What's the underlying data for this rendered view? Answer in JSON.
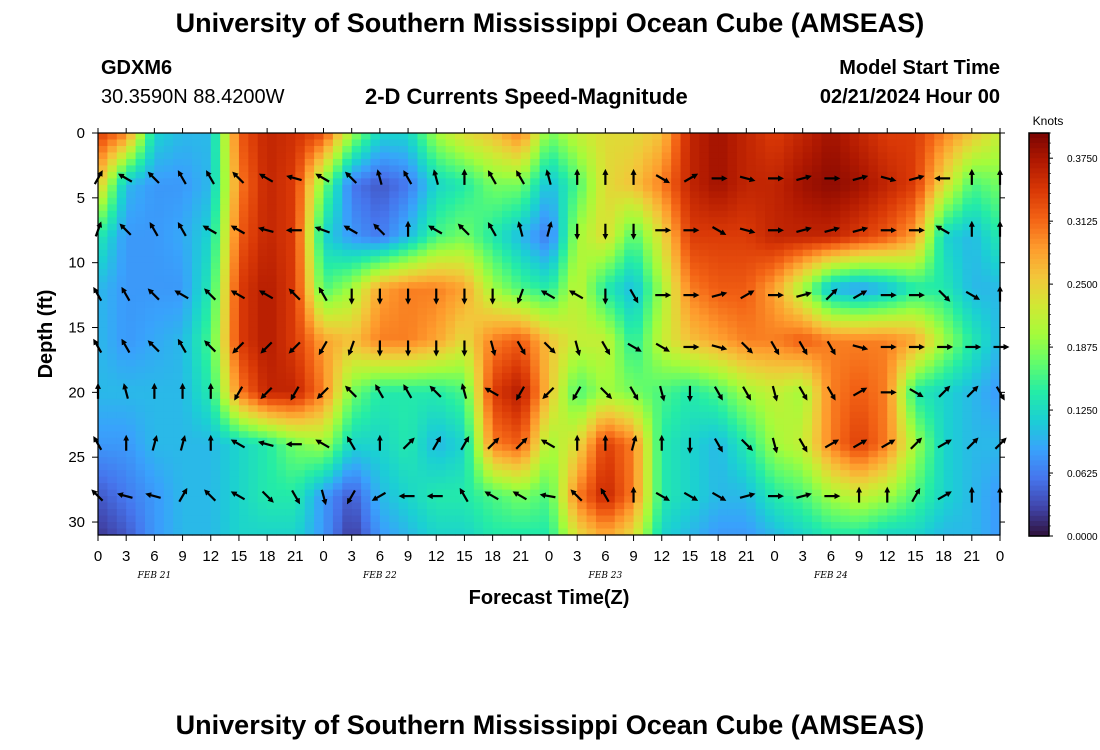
{
  "header": {
    "title": "University of Southern Mississippi Ocean Cube (AMSEAS)",
    "station": "GDXM6",
    "coords": "30.3590N  88.4200W",
    "plot_title": "2-D Currents Speed-Magnitude",
    "start_label": "Model Start Time",
    "start_value": "02/21/2024 Hour 00"
  },
  "footer": {
    "title": "University of Southern Mississippi Ocean Cube (AMSEAS)"
  },
  "chart_data": {
    "type": "heatmap",
    "xlabel": "Forecast Time(Z)",
    "ylabel": "Depth (ft)",
    "x_tick_labels": [
      "0",
      "3",
      "6",
      "9",
      "12",
      "15",
      "18",
      "21",
      "0",
      "3",
      "6",
      "9",
      "12",
      "15",
      "18",
      "21",
      "0",
      "3",
      "6",
      "9",
      "12",
      "15",
      "18",
      "21",
      "0",
      "3",
      "6",
      "9",
      "12",
      "15",
      "18",
      "21",
      "0"
    ],
    "day_labels": [
      "FEB 21",
      "FEB 22",
      "FEB 23",
      "FEB 24"
    ],
    "y_ticks": [
      0,
      5,
      10,
      15,
      20,
      25,
      30
    ],
    "ylim": [
      0,
      31
    ],
    "xlim_hours": [
      0,
      96
    ],
    "colorbar": {
      "label": "Knots",
      "ticks": [
        "0.3750",
        "0.3125",
        "0.2500",
        "0.1875",
        "0.1250",
        "0.0625",
        "0.0000"
      ],
      "range": [
        0,
        0.4
      ]
    },
    "colormap": [
      "#30123b",
      "#4145ab",
      "#4675ed",
      "#39a2fc",
      "#1bcfd4",
      "#24eca6",
      "#61fc6c",
      "#a4fc3b",
      "#d1e834",
      "#f3c63a",
      "#fe9b2d",
      "#f36315",
      "#d93806",
      "#b11901",
      "#7a0402"
    ],
    "depths_ft": [
      0,
      4,
      8,
      12,
      16,
      20,
      24,
      28,
      31
    ],
    "times_hours": [
      0,
      3,
      6,
      9,
      12,
      15,
      18,
      21,
      24,
      27,
      30,
      33,
      36,
      39,
      42,
      45,
      48,
      51,
      54,
      57,
      60,
      63,
      66,
      69,
      72,
      75,
      78,
      81,
      84,
      87,
      90,
      93,
      96
    ],
    "speed_knots": [
      [
        0.34,
        0.3,
        0.12,
        0.1,
        0.1,
        0.32,
        0.36,
        0.35,
        0.33,
        0.2,
        0.12,
        0.12,
        0.2,
        0.24,
        0.26,
        0.3,
        0.18,
        0.22,
        0.24,
        0.24,
        0.26,
        0.36,
        0.38,
        0.36,
        0.34,
        0.36,
        0.38,
        0.36,
        0.34,
        0.34,
        0.3,
        0.26,
        0.22
      ],
      [
        0.26,
        0.1,
        0.08,
        0.08,
        0.1,
        0.3,
        0.36,
        0.34,
        0.18,
        0.06,
        0.04,
        0.06,
        0.12,
        0.14,
        0.18,
        0.18,
        0.1,
        0.16,
        0.24,
        0.26,
        0.3,
        0.36,
        0.38,
        0.36,
        0.36,
        0.38,
        0.39,
        0.38,
        0.36,
        0.34,
        0.24,
        0.16,
        0.18
      ],
      [
        0.14,
        0.08,
        0.08,
        0.09,
        0.12,
        0.32,
        0.36,
        0.34,
        0.12,
        0.08,
        0.06,
        0.1,
        0.16,
        0.18,
        0.14,
        0.1,
        0.06,
        0.2,
        0.24,
        0.16,
        0.24,
        0.34,
        0.34,
        0.34,
        0.36,
        0.36,
        0.36,
        0.34,
        0.32,
        0.28,
        0.12,
        0.1,
        0.14
      ],
      [
        0.1,
        0.08,
        0.08,
        0.08,
        0.14,
        0.34,
        0.37,
        0.34,
        0.16,
        0.2,
        0.28,
        0.3,
        0.3,
        0.28,
        0.2,
        0.16,
        0.14,
        0.22,
        0.14,
        0.1,
        0.2,
        0.3,
        0.32,
        0.32,
        0.28,
        0.2,
        0.1,
        0.08,
        0.1,
        0.14,
        0.14,
        0.1,
        0.1
      ],
      [
        0.1,
        0.08,
        0.09,
        0.1,
        0.16,
        0.34,
        0.37,
        0.34,
        0.28,
        0.26,
        0.3,
        0.3,
        0.28,
        0.24,
        0.3,
        0.32,
        0.26,
        0.22,
        0.22,
        0.14,
        0.22,
        0.26,
        0.28,
        0.3,
        0.3,
        0.32,
        0.3,
        0.3,
        0.3,
        0.28,
        0.2,
        0.14,
        0.1
      ],
      [
        0.1,
        0.1,
        0.1,
        0.1,
        0.14,
        0.3,
        0.36,
        0.36,
        0.3,
        0.18,
        0.14,
        0.14,
        0.14,
        0.16,
        0.34,
        0.37,
        0.26,
        0.16,
        0.2,
        0.18,
        0.16,
        0.14,
        0.16,
        0.2,
        0.22,
        0.2,
        0.3,
        0.32,
        0.3,
        0.14,
        0.12,
        0.1,
        0.08
      ],
      [
        0.08,
        0.08,
        0.1,
        0.1,
        0.1,
        0.12,
        0.14,
        0.18,
        0.2,
        0.12,
        0.12,
        0.14,
        0.1,
        0.12,
        0.3,
        0.32,
        0.2,
        0.24,
        0.34,
        0.3,
        0.14,
        0.12,
        0.1,
        0.14,
        0.2,
        0.22,
        0.3,
        0.34,
        0.3,
        0.2,
        0.12,
        0.1,
        0.1
      ],
      [
        0.04,
        0.06,
        0.08,
        0.1,
        0.1,
        0.12,
        0.14,
        0.14,
        0.08,
        0.04,
        0.1,
        0.12,
        0.14,
        0.14,
        0.16,
        0.18,
        0.16,
        0.3,
        0.36,
        0.3,
        0.14,
        0.12,
        0.1,
        0.1,
        0.14,
        0.16,
        0.2,
        0.22,
        0.2,
        0.16,
        0.12,
        0.1,
        0.08
      ],
      [
        0.02,
        0.04,
        0.08,
        0.1,
        0.1,
        0.12,
        0.12,
        0.12,
        0.08,
        0.02,
        0.08,
        0.1,
        0.12,
        0.12,
        0.14,
        0.14,
        0.14,
        0.24,
        0.28,
        0.24,
        0.12,
        0.1,
        0.08,
        0.08,
        0.1,
        0.12,
        0.14,
        0.14,
        0.12,
        0.12,
        0.1,
        0.1,
        0.08
      ]
    ],
    "arrow_depths_ft": [
      3.5,
      7.5,
      12.5,
      16.5,
      20,
      24,
      28
    ],
    "arrow_times_hours": [
      0,
      3,
      6,
      9,
      12,
      15,
      18,
      21,
      24,
      27,
      30,
      33,
      36,
      39,
      42,
      45,
      48,
      51,
      54,
      57,
      60,
      63,
      66,
      69,
      72,
      75,
      78,
      81,
      84,
      87,
      90,
      93,
      96
    ],
    "arrow_direction_deg": [
      [
        30,
        300,
        315,
        330,
        330,
        315,
        300,
        285,
        300,
        315,
        345,
        330,
        345,
        0,
        330,
        330,
        345,
        0,
        0,
        0,
        120,
        60,
        90,
        105,
        90,
        75,
        90,
        75,
        105,
        75,
        270,
        0,
        0
      ],
      [
        20,
        315,
        330,
        330,
        300,
        300,
        285,
        270,
        290,
        300,
        315,
        0,
        300,
        315,
        330,
        345,
        15,
        180,
        180,
        180,
        90,
        90,
        120,
        105,
        90,
        75,
        75,
        75,
        90,
        90,
        300,
        0,
        0
      ],
      [
        330,
        330,
        315,
        300,
        315,
        300,
        300,
        315,
        330,
        180,
        180,
        180,
        180,
        180,
        180,
        200,
        300,
        300,
        180,
        150,
        90,
        90,
        75,
        60,
        90,
        75,
        45,
        60,
        90,
        90,
        135,
        120,
        0
      ],
      [
        330,
        330,
        315,
        330,
        315,
        225,
        225,
        225,
        210,
        200,
        180,
        180,
        180,
        180,
        165,
        150,
        135,
        165,
        150,
        120,
        120,
        90,
        105,
        135,
        150,
        150,
        150,
        105,
        90,
        90,
        90,
        90,
        90
      ],
      [
        0,
        345,
        0,
        0,
        0,
        210,
        225,
        210,
        225,
        315,
        330,
        330,
        315,
        345,
        300,
        210,
        225,
        210,
        135,
        150,
        165,
        180,
        150,
        150,
        165,
        150,
        150,
        60,
        90,
        120,
        45,
        45,
        150
      ],
      [
        330,
        0,
        15,
        15,
        0,
        300,
        285,
        270,
        300,
        330,
        0,
        45,
        30,
        30,
        45,
        45,
        300,
        0,
        0,
        15,
        0,
        180,
        150,
        135,
        165,
        150,
        60,
        60,
        60,
        45,
        60,
        45,
        45
      ],
      [
        315,
        285,
        285,
        30,
        315,
        300,
        135,
        150,
        165,
        210,
        240,
        270,
        270,
        330,
        300,
        300,
        280,
        315,
        330,
        0,
        120,
        120,
        120,
        75,
        90,
        75,
        90,
        0,
        0,
        30,
        60,
        0,
        0
      ]
    ]
  }
}
